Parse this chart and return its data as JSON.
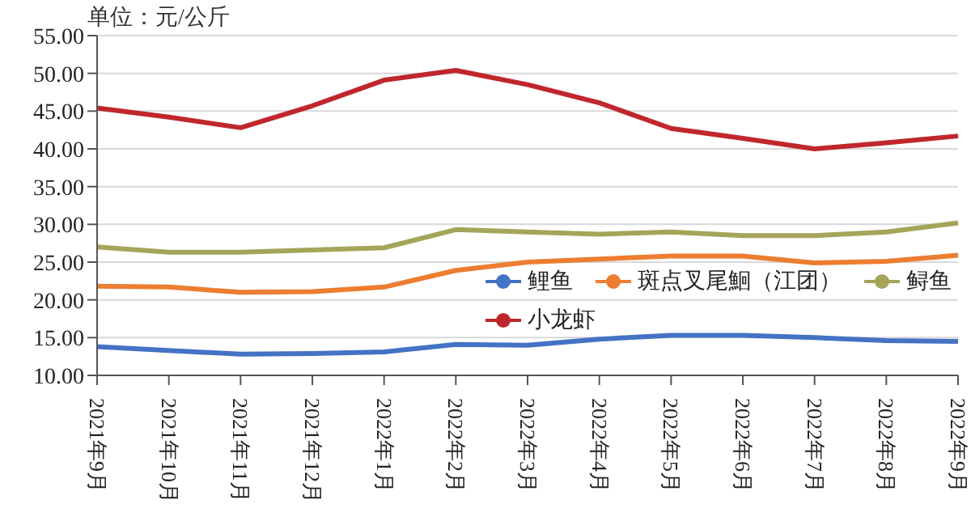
{
  "chart_data": {
    "type": "line",
    "ylabel": "单位：元/公斤",
    "categories": [
      "2021年9月",
      "2021年10月",
      "2021年11月",
      "2021年12月",
      "2022年1月",
      "2022年2月",
      "2022年3月",
      "2022年4月",
      "2022年5月",
      "2022年6月",
      "2022年7月",
      "2022年8月",
      "2022年9月"
    ],
    "series": [
      {
        "name": "鲤鱼",
        "color": "#4472c4",
        "values": [
          13.8,
          13.3,
          12.8,
          12.9,
          13.1,
          14.1,
          14.0,
          14.8,
          15.3,
          15.3,
          15.0,
          14.6,
          14.5
        ]
      },
      {
        "name": "斑点叉尾鮰（江团）",
        "color": "#ed7d31",
        "values": [
          21.8,
          21.7,
          21.0,
          21.1,
          21.7,
          23.9,
          25.0,
          25.4,
          25.8,
          25.8,
          24.9,
          25.1,
          25.9
        ]
      },
      {
        "name": "鲟鱼",
        "color": "#a5a55a",
        "values": [
          27.0,
          26.3,
          26.3,
          26.6,
          26.9,
          29.3,
          29.0,
          28.7,
          29.0,
          28.5,
          28.5,
          29.0,
          30.2
        ]
      },
      {
        "name": "小龙虾",
        "color": "#c0272d",
        "values": [
          45.4,
          44.2,
          42.8,
          45.7,
          49.1,
          50.4,
          48.5,
          46.1,
          42.7,
          41.4,
          40.0,
          40.8,
          41.7
        ]
      }
    ],
    "ylim": [
      10,
      55
    ],
    "yticks": [
      {
        "value": 10,
        "label": "10.00"
      },
      {
        "value": 15,
        "label": "15.00"
      },
      {
        "value": 20,
        "label": "20.00"
      },
      {
        "value": 25,
        "label": "25.00"
      },
      {
        "value": 30,
        "label": "30.00"
      },
      {
        "value": 35,
        "label": "35.00"
      },
      {
        "value": 40,
        "label": "40.00"
      },
      {
        "value": 45,
        "label": "45.00"
      },
      {
        "value": 50,
        "label": "50.00"
      },
      {
        "value": 55,
        "label": "55.00"
      }
    ],
    "grid": "y",
    "legend": "right"
  }
}
